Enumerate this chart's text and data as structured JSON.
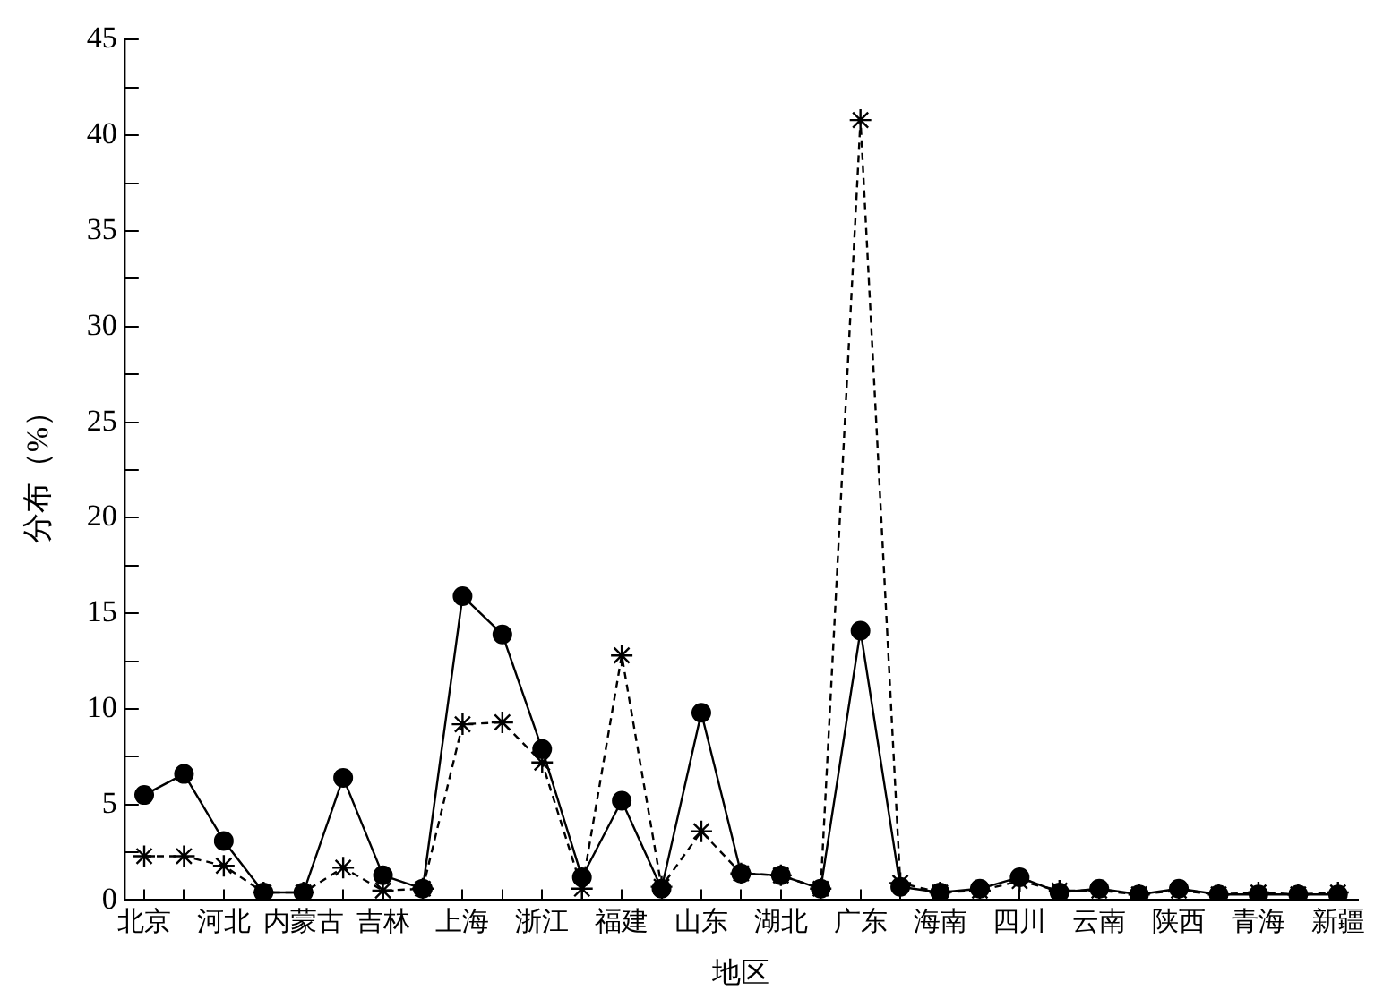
{
  "chart_data": {
    "type": "line",
    "xlabel": "地区",
    "ylabel": "分布（%）",
    "categories": [
      "北京",
      null,
      "河北",
      null,
      "内蒙古",
      null,
      "吉林",
      null,
      "上海",
      null,
      "浙江",
      null,
      "福建",
      null,
      "山东",
      null,
      "湖北",
      null,
      "广东",
      null,
      "海南",
      null,
      "四川",
      null,
      "云南",
      null,
      "陕西",
      null,
      "青海",
      null,
      "新疆"
    ],
    "series": [
      {
        "color": "#000000",
        "marker": "circle",
        "line_style": "solid",
        "values": [
          5.5,
          6.6,
          3.1,
          0.4,
          0.4,
          6.4,
          1.3,
          0.6,
          15.9,
          13.9,
          7.9,
          1.2,
          5.2,
          0.6,
          9.8,
          1.4,
          1.3,
          0.6,
          14.1,
          0.7,
          0.4,
          0.6,
          1.2,
          0.4,
          0.6,
          0.3,
          0.6,
          0.3,
          0.3,
          0.3,
          0.3
        ]
      },
      {
        "color": "#000000",
        "marker": "cross",
        "line_style": "dashed",
        "values": [
          2.3,
          2.3,
          1.8,
          0.4,
          0.4,
          1.7,
          0.5,
          0.6,
          9.2,
          9.3,
          7.2,
          0.6,
          12.8,
          0.7,
          3.6,
          1.4,
          1.3,
          0.6,
          40.8,
          0.9,
          0.4,
          0.5,
          1.0,
          0.5,
          0.5,
          0.3,
          0.5,
          0.3,
          0.4,
          0.3,
          0.4
        ]
      }
    ],
    "ylim": [
      0,
      45
    ],
    "yticks": [
      0,
      {
        "value": 2.5,
        "label": null
      },
      5,
      {
        "value": 7.5,
        "label": null
      },
      10,
      {
        "value": 12.5,
        "label": null
      },
      15,
      {
        "value": 17.5,
        "label": null
      },
      20,
      {
        "value": 22.5,
        "label": null
      },
      25,
      {
        "value": 27.5,
        "label": null
      },
      30,
      {
        "value": 32.5,
        "label": null
      },
      35,
      {
        "value": 37.5,
        "label": null
      },
      40,
      {
        "value": 42.5,
        "label": null
      },
      45
    ],
    "grid": false,
    "legend": false
  }
}
